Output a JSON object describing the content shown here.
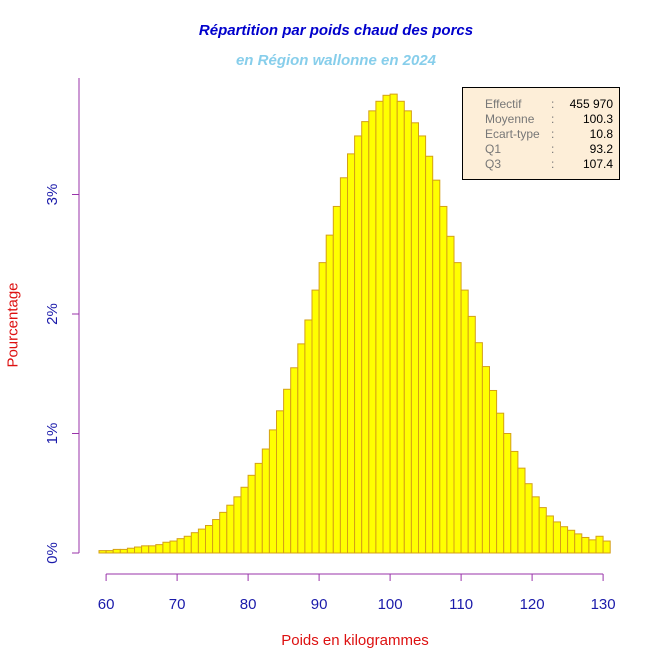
{
  "chart_data": {
    "type": "bar",
    "title": "Répartition par poids chaud des porcs",
    "subtitle": "en Région wallonne en 2024",
    "xlabel": "Poids en kilogrammes",
    "ylabel": "Pourcentage",
    "x_ticks": [
      60,
      70,
      80,
      90,
      100,
      110,
      120,
      130
    ],
    "y_ticks": [
      "0%",
      "1%",
      "2%",
      "3%"
    ],
    "xlim": [
      59,
      131
    ],
    "ylim": [
      0,
      3.85
    ],
    "bin_width": 1,
    "bins_start": [
      59,
      60,
      61,
      62,
      63,
      64,
      65,
      66,
      67,
      68,
      69,
      70,
      71,
      72,
      73,
      74,
      75,
      76,
      77,
      78,
      79,
      80,
      81,
      82,
      83,
      84,
      85,
      86,
      87,
      88,
      89,
      90,
      91,
      92,
      93,
      94,
      95,
      96,
      97,
      98,
      99,
      100,
      101,
      102,
      103,
      104,
      105,
      106,
      107,
      108,
      109,
      110,
      111,
      112,
      113,
      114,
      115,
      116,
      117,
      118,
      119,
      120,
      121,
      122,
      123,
      124,
      125,
      126,
      127,
      128,
      129,
      130
    ],
    "values": [
      0.02,
      0.02,
      0.03,
      0.03,
      0.04,
      0.05,
      0.06,
      0.06,
      0.07,
      0.09,
      0.1,
      0.12,
      0.14,
      0.17,
      0.2,
      0.23,
      0.28,
      0.34,
      0.4,
      0.47,
      0.55,
      0.65,
      0.75,
      0.87,
      1.03,
      1.19,
      1.37,
      1.55,
      1.75,
      1.95,
      2.2,
      2.43,
      2.66,
      2.9,
      3.14,
      3.34,
      3.49,
      3.61,
      3.7,
      3.78,
      3.83,
      3.84,
      3.78,
      3.7,
      3.6,
      3.49,
      3.32,
      3.12,
      2.9,
      2.65,
      2.43,
      2.2,
      1.98,
      1.76,
      1.56,
      1.36,
      1.17,
      1.0,
      0.85,
      0.71,
      0.58,
      0.47,
      0.38,
      0.31,
      0.26,
      0.22,
      0.19,
      0.16,
      0.13,
      0.11,
      0.14,
      0.1
    ],
    "bar_color": "#ffff00",
    "bar_border_color": "#d4a017",
    "axis_color": "#9933aa",
    "tick_label_color": "#1a1aaa",
    "grid": false
  },
  "stats": [
    {
      "label": "Effectif",
      "sep": ":",
      "value": "455 970"
    },
    {
      "label": "Moyenne",
      "sep": ":",
      "value": "100.3"
    },
    {
      "label": "Ecart-type",
      "sep": ":",
      "value": "10.8"
    },
    {
      "label": "Q1",
      "sep": ":",
      "value": "93.2"
    },
    {
      "label": "Q3",
      "sep": ":",
      "value": "107.4"
    }
  ]
}
